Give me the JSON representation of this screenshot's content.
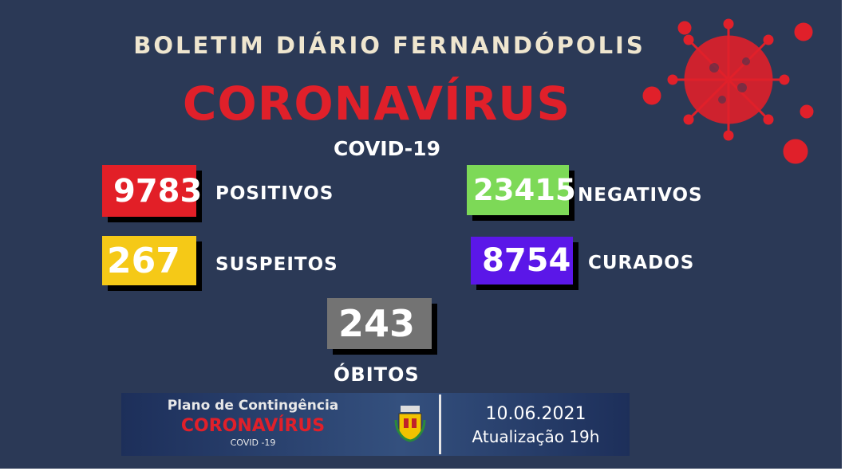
{
  "header": {
    "title": "BOLETIM DIÁRIO FERNANDÓPOLIS",
    "headline": "CORONAVÍRUS",
    "subtitle": "COVID-19"
  },
  "stats": {
    "positivos": {
      "value": "9783",
      "label": "POSITIVOS",
      "color": "#e21f27"
    },
    "negativos": {
      "value": "23415",
      "label": "NEGATIVOS",
      "color": "#7dd957"
    },
    "suspeitos": {
      "value": "267",
      "label": "SUSPEITOS",
      "color": "#f5c917"
    },
    "curados": {
      "value": "8754",
      "label": "CURADOS",
      "color": "#5b17e8"
    },
    "obitos": {
      "value": "243",
      "label": "ÓBITOS",
      "color": "#737373"
    }
  },
  "banner": {
    "line1": "Plano de Contingência",
    "line2": "CORONAVÍRUS",
    "line3": "COVID -19",
    "date": "10.06.2021",
    "update": "Atualização 19h",
    "logo": "fernandopolis-coat-of-arms"
  },
  "decoration": {
    "icon": "virus-icon",
    "color": "#e0202a"
  }
}
